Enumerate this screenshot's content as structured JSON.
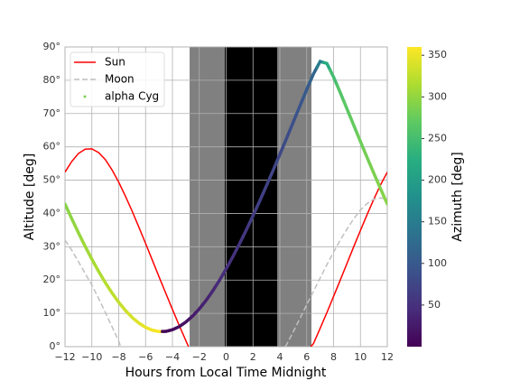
{
  "chart_data": {
    "type": "line",
    "x_label": "Hours from Local Time Midnight",
    "y_label": "Altitude [deg]",
    "xlim": [
      -12,
      12
    ],
    "ylim": [
      0,
      90
    ],
    "xticks": [
      {
        "value": -12,
        "label": "−12"
      },
      {
        "value": -10,
        "label": "−10"
      },
      {
        "value": -8,
        "label": "−8"
      },
      {
        "value": -6,
        "label": "−6"
      },
      {
        "value": -4,
        "label": "−4"
      },
      {
        "value": -2,
        "label": "−2"
      },
      0,
      2,
      4,
      6,
      8,
      10,
      12
    ],
    "yticks": [
      {
        "value": 0,
        "label": "0°"
      },
      {
        "value": 10,
        "label": "10°"
      },
      {
        "value": 20,
        "label": "20°"
      },
      {
        "value": 30,
        "label": "30°"
      },
      {
        "value": 40,
        "label": "40°"
      },
      {
        "value": 50,
        "label": "50°"
      },
      {
        "value": 60,
        "label": "60°"
      },
      {
        "value": 70,
        "label": "70°"
      },
      {
        "value": 80,
        "label": "80°"
      },
      {
        "value": 90,
        "label": "90°"
      }
    ],
    "grid": true,
    "legend": "upper left",
    "shaded_regions": [
      {
        "xlim": [
          -2.72,
          6.35
        ],
        "color": "#808080"
      },
      {
        "xlim": [
          -0.1,
          3.8
        ],
        "color": "#000000"
      }
    ],
    "series": [
      {
        "name": "Sun",
        "type": "line",
        "color": "#ff0000",
        "linestyle": "solid",
        "x": [
          -12,
          -11.5,
          -11,
          -10.5,
          -10,
          -9.5,
          -9,
          -8.5,
          -8,
          -7.5,
          -7,
          -6.5,
          -6,
          -5.5,
          -5,
          -4.5,
          -4,
          -3.5,
          -3,
          -2.8,
          1,
          6.3,
          6.5,
          7,
          7.5,
          8,
          8.5,
          9,
          9.5,
          10,
          10.5,
          11,
          11.5,
          12
        ],
        "values": [
          52.4,
          55.6,
          58,
          59.3,
          59.4,
          58.3,
          56.2,
          53.1,
          49.4,
          45.2,
          40.7,
          35.9,
          31,
          26,
          21,
          16.1,
          11.2,
          6.4,
          1.8,
          0,
          null,
          0,
          0.9,
          5.5,
          10.2,
          15.1,
          20,
          25,
          30,
          34.9,
          39.7,
          44.3,
          48.6,
          52.4
        ]
      },
      {
        "name": "Moon",
        "type": "line",
        "color": "#c0c0c0",
        "linestyle": "dashed",
        "x": [
          -12,
          -11.5,
          -11,
          -10.5,
          -10,
          -9.5,
          -9,
          -8.5,
          -8,
          -7.85,
          0,
          4.4,
          4.5,
          5,
          5.5,
          6,
          6.5,
          7,
          7.5,
          8,
          8.5,
          9,
          9.5,
          10,
          10.5,
          11,
          11.5,
          12
        ],
        "values": [
          32,
          29,
          25.5,
          22,
          18.5,
          14.5,
          10.3,
          6,
          1.7,
          0,
          null,
          0,
          0.6,
          4.5,
          8.5,
          12.6,
          16.6,
          20.6,
          24.6,
          28.4,
          32,
          35.3,
          38.4,
          41,
          43,
          44.3,
          44.7,
          44.2
        ]
      },
      {
        "name": "alpha Cyg",
        "type": "scatter",
        "color": "#7ad151",
        "x": [
          -12,
          -11.5,
          -11,
          -10.5,
          -10,
          -9.5,
          -9,
          -8.5,
          -8,
          -7.5,
          -7,
          -6.5,
          -6,
          -5.5,
          -5,
          -4.5,
          -4,
          -3.5,
          -3,
          -2.5,
          -2,
          -1.5,
          -1,
          -0.5,
          0,
          0.5,
          1,
          1.5,
          2,
          2.5,
          3,
          3.5,
          4,
          4.5,
          5,
          5.5,
          6,
          6.5,
          7,
          7.5,
          8,
          8.5,
          9,
          9.5,
          10,
          10.5,
          11,
          11.5,
          12
        ],
        "values": [
          42.85,
          38.44,
          34.2,
          30.13,
          26.26,
          22.63,
          19.23,
          16.13,
          13.33,
          10.87,
          8.78,
          7.08,
          5.8,
          4.94,
          4.54,
          4.58,
          5.08,
          6.02,
          7.39,
          9.17,
          11.34,
          13.86,
          16.73,
          19.89,
          23.34,
          27.03,
          30.94,
          35.04,
          39.32,
          43.75,
          48.31,
          52.98,
          57.74,
          62.57,
          67.46,
          72.35,
          77.2,
          81.89,
          85.64,
          85.07,
          80.97,
          76.27,
          71.38,
          66.49,
          61.6,
          56.79,
          52.04,
          47.39,
          42.85
        ],
        "azimuth": [
          294.1,
          298,
          301.9,
          305.8,
          309.9,
          314.1,
          318.4,
          322.9,
          327.5,
          332.3,
          337.2,
          342.2,
          347.4,
          352.6,
          357.9,
          3.2,
          8.4,
          13.7,
          18.8,
          23.8,
          28.7,
          33.4,
          38,
          42.5,
          46.8,
          50.9,
          55,
          58.9,
          62.8,
          66.6,
          70.4,
          74.3,
          78.3,
          82.6,
          87.3,
          93.1,
          100.9,
          114.8,
          151.4,
          219.7,
          248.9,
          260.9,
          268.2,
          273.7,
          278.3,
          282.5,
          286.5,
          290.3,
          294.1
        ]
      }
    ],
    "colorbar": {
      "label": "Azimuth [deg]",
      "lim": [
        0,
        360
      ],
      "ticks": [
        50,
        100,
        150,
        200,
        250,
        300,
        350
      ],
      "colormap": [
        "#440154",
        "#472d7b",
        "#3b528b",
        "#2c728e",
        "#21918c",
        "#28ae80",
        "#5ec962",
        "#addc30",
        "#fde725"
      ]
    }
  }
}
